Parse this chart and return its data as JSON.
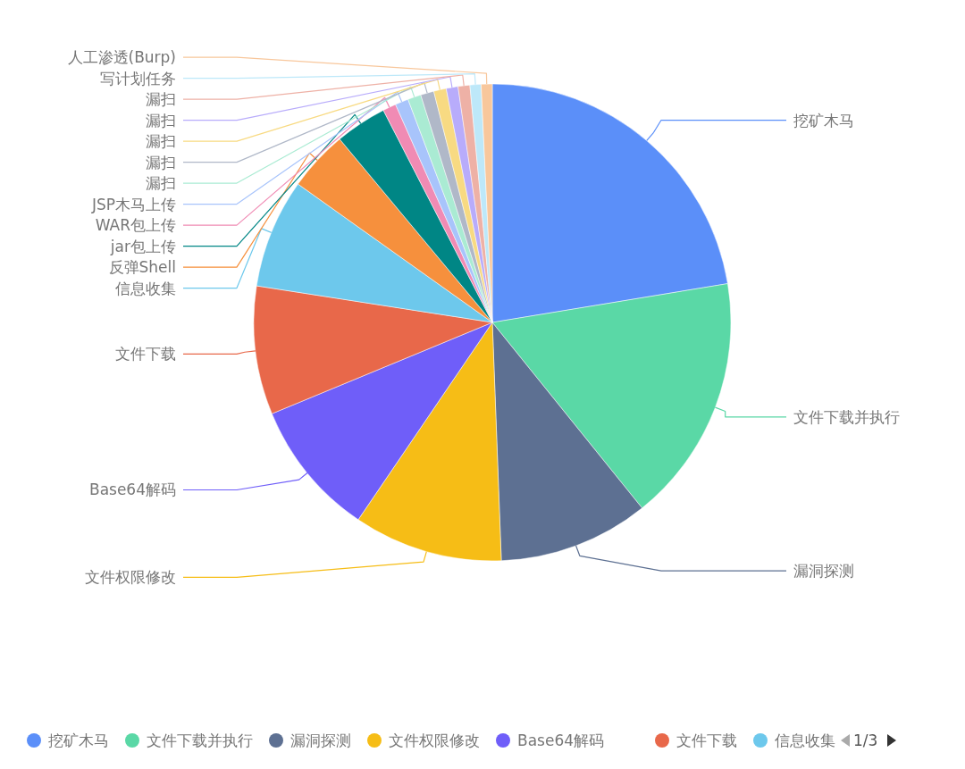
{
  "chart_data": {
    "type": "pie",
    "categories": [
      "挖矿木马",
      "文件下载并执行",
      "漏洞探测",
      "文件权限修改",
      "Base64解码",
      "文件下载",
      "信息收集",
      "反弹Shell",
      "jar包上传",
      "WAR包上传",
      "JSP木马上传",
      "漏扫",
      "漏扫",
      "漏扫",
      "漏扫",
      "漏扫",
      "写计划任务",
      "人工渗透(Burp)"
    ],
    "values": [
      22.4,
      16.8,
      10.2,
      10.1,
      9.25,
      8.7,
      7.4,
      4.1,
      3.5,
      0.9,
      0.9,
      0.9,
      0.9,
      0.85,
      0.8,
      0.8,
      0.75,
      0.75
    ],
    "colors": [
      "#5b8ff9",
      "#5ad8a6",
      "#5d7092",
      "#f6bd16",
      "#6f5ef9",
      "#e8684a",
      "#6dc8ec",
      "#f6903d",
      "#008685",
      "#f08bb4",
      "#a8c4fb",
      "#aaebd3",
      "#b0b8c8",
      "#f8da82",
      "#b8acfb",
      "#eeb1a6",
      "#bde8f9",
      "#f8c79c"
    ],
    "legend": "bottom",
    "annotations": [
      "1/3"
    ]
  }
}
